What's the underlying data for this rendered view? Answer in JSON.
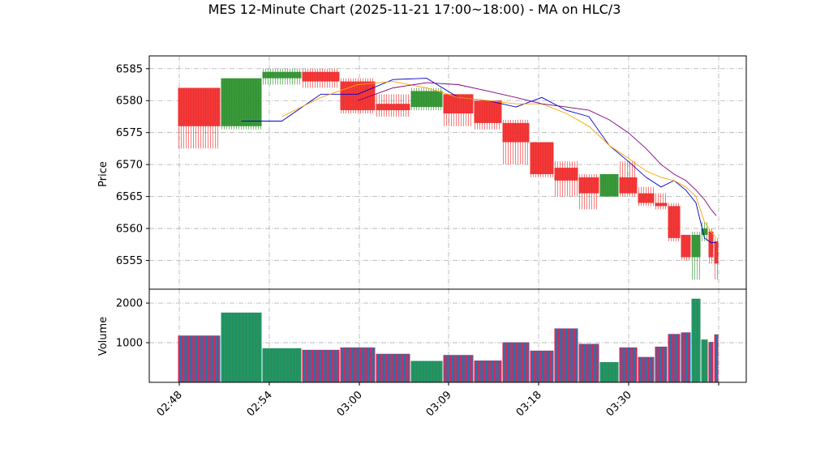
{
  "chart_data": {
    "type": "ohlc-candlestick-with-volume",
    "title": "MES 12-Minute Chart (2025-11-21 17:00~18:00) - MA on HLC/3",
    "price_panel": {
      "ylabel": "Price",
      "ylim": [
        6550.5,
        6587
      ],
      "yticks": [
        6555,
        6560,
        6565,
        6570,
        6575,
        6580,
        6585
      ],
      "grid": true
    },
    "volume_panel": {
      "ylabel": "Volume",
      "ylim": [
        0,
        2350
      ],
      "yticks": [
        1000,
        2000
      ],
      "grid": true
    },
    "x_tick_labels": [
      "02:48",
      "02:54",
      "03:00",
      "03:09",
      "03:18",
      "03:30"
    ],
    "candles": [
      {
        "open": 6582.0,
        "high": 6582.0,
        "low": 6572.5,
        "close": 6576.0,
        "volume": 1180,
        "direction": "down"
      },
      {
        "open": 6576.0,
        "high": 6583.5,
        "low": 6575.5,
        "close": 6583.5,
        "volume": 1760,
        "direction": "up"
      },
      {
        "open": 6583.5,
        "high": 6585.0,
        "low": 6582.5,
        "close": 6584.5,
        "volume": 860,
        "direction": "up"
      },
      {
        "open": 6584.5,
        "high": 6585.0,
        "low": 6582.0,
        "close": 6583.0,
        "volume": 820,
        "direction": "down"
      },
      {
        "open": 6583.0,
        "high": 6583.5,
        "low": 6578.0,
        "close": 6578.5,
        "volume": 880,
        "direction": "down"
      },
      {
        "open": 6579.5,
        "high": 6581.0,
        "low": 6577.5,
        "close": 6578.5,
        "volume": 720,
        "direction": "down"
      },
      {
        "open": 6579.0,
        "high": 6582.0,
        "low": 6578.5,
        "close": 6581.5,
        "volume": 540,
        "direction": "up"
      },
      {
        "open": 6581.0,
        "high": 6581.0,
        "low": 6576.0,
        "close": 6578.0,
        "volume": 690,
        "direction": "down"
      },
      {
        "open": 6580.0,
        "high": 6580.0,
        "low": 6575.5,
        "close": 6576.5,
        "volume": 550,
        "direction": "down"
      },
      {
        "open": 6576.5,
        "high": 6577.0,
        "low": 6570.0,
        "close": 6573.5,
        "volume": 1010,
        "direction": "down"
      },
      {
        "open": 6573.5,
        "high": 6573.5,
        "low": 6568.0,
        "close": 6568.5,
        "volume": 800,
        "direction": "down"
      },
      {
        "open": 6569.5,
        "high": 6570.5,
        "low": 6565.0,
        "close": 6567.5,
        "volume": 1360,
        "direction": "down"
      },
      {
        "open": 6568.0,
        "high": 6568.5,
        "low": 6563.0,
        "close": 6565.5,
        "volume": 970,
        "direction": "down"
      },
      {
        "open": 6565.0,
        "high": 6568.5,
        "low": 6565.0,
        "close": 6568.5,
        "volume": 510,
        "direction": "up"
      },
      {
        "open": 6568.0,
        "high": 6570.5,
        "low": 6565.0,
        "close": 6565.5,
        "volume": 880,
        "direction": "down"
      },
      {
        "open": 6565.5,
        "high": 6566.5,
        "low": 6563.5,
        "close": 6564.0,
        "volume": 640,
        "direction": "down"
      },
      {
        "open": 6564.0,
        "high": 6565.5,
        "low": 6563.0,
        "close": 6563.5,
        "volume": 900,
        "direction": "down"
      },
      {
        "open": 6563.5,
        "high": 6564.0,
        "low": 6558.0,
        "close": 6558.5,
        "volume": 1220,
        "direction": "down"
      },
      {
        "open": 6559.0,
        "high": 6559.0,
        "low": 6555.0,
        "close": 6555.5,
        "volume": 1260,
        "direction": "down"
      },
      {
        "open": 6555.5,
        "high": 6559.5,
        "low": 6552.0,
        "close": 6559.0,
        "volume": 2110,
        "direction": "up"
      },
      {
        "open": 6559.0,
        "high": 6561.0,
        "low": 6558.0,
        "close": 6560.0,
        "volume": 1080,
        "direction": "up"
      },
      {
        "open": 6559.5,
        "high": 6560.0,
        "low": 6554.5,
        "close": 6555.5,
        "volume": 1020,
        "direction": "down"
      },
      {
        "open": 6558.0,
        "high": 6558.5,
        "low": 6552.0,
        "close": 6554.5,
        "volume": 1210,
        "direction": "down"
      }
    ],
    "ma_series": [
      {
        "color": "#0000cc",
        "values": [
          null,
          6576.8,
          6576.8,
          6581.0,
          6581.0,
          6583.3,
          6583.5,
          6580.5,
          6580.0,
          6579.0,
          6580.5,
          6578.5,
          6577.5,
          6573.0,
          6570.5,
          6568.0,
          6566.5,
          6567.5,
          6566.0,
          6564.0,
          6558.5,
          6557.8,
          6557.8
        ]
      },
      {
        "color": "#ffa500",
        "values": [
          null,
          null,
          6577.5,
          6580.5,
          6582.5,
          6583.0,
          6582.0,
          6580.5,
          6580.0,
          6579.5,
          6579.5,
          6578.0,
          6576.0,
          6573.0,
          6571.0,
          6569.0,
          6568.0,
          6567.5,
          6566.5,
          6565.0,
          6561.0,
          6559.5,
          6558.5
        ]
      },
      {
        "color": "#800080",
        "values": [
          null,
          null,
          null,
          null,
          6580.0,
          6582.0,
          6582.8,
          6582.5,
          6581.5,
          6580.5,
          6579.5,
          6579.0,
          6578.5,
          6577.0,
          6575.0,
          6572.5,
          6570.0,
          6568.5,
          6567.5,
          6566.0,
          6564.5,
          6563.0,
          6562.0
        ]
      }
    ],
    "colors": {
      "up": "#2a8f2a",
      "down": "#f02828",
      "volume_stripe_a": "#d62754",
      "volume_stripe_b": "#1f77b4",
      "volume_stripe_up": "#1a9a6c",
      "grid": "#b0b0b0"
    }
  }
}
